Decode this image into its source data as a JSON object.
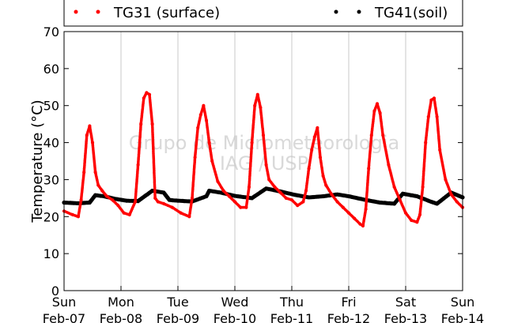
{
  "chart_data": {
    "type": "scatter",
    "title": "",
    "xlabel": "",
    "ylabel": "Temperature (°C)",
    "ylim": [
      0,
      70
    ],
    "y_ticks": [
      0,
      10,
      20,
      30,
      40,
      50,
      60,
      70
    ],
    "x_unit": "days",
    "xlim": [
      0,
      7
    ],
    "x_ticks": [
      {
        "day": "Sun",
        "date": "Feb-07"
      },
      {
        "day": "Mon",
        "date": "Feb-08"
      },
      {
        "day": "Tue",
        "date": "Feb-09"
      },
      {
        "day": "Wed",
        "date": "Feb-10"
      },
      {
        "day": "Thu",
        "date": "Feb-11"
      },
      {
        "day": "Fri",
        "date": "Feb-12"
      },
      {
        "day": "Sat",
        "date": "Feb-13"
      },
      {
        "day": "Sun",
        "date": "Feb-14"
      }
    ],
    "grid": "vertical",
    "legend_position": "top",
    "watermark": [
      "Grupo de Micrometeorologia",
      "IAG / USP"
    ],
    "series": [
      {
        "name": "TG31 (surface)",
        "color": "#ff0000",
        "x": [
          0.0,
          0.15,
          0.25,
          0.3,
          0.35,
          0.4,
          0.45,
          0.5,
          0.55,
          0.6,
          0.67,
          0.75,
          0.85,
          0.95,
          1.05,
          1.15,
          1.25,
          1.3,
          1.35,
          1.4,
          1.45,
          1.5,
          1.55,
          1.6,
          1.65,
          1.75,
          1.9,
          2.05,
          2.2,
          2.25,
          2.3,
          2.35,
          2.4,
          2.45,
          2.5,
          2.55,
          2.6,
          2.7,
          2.8,
          2.9,
          3.0,
          3.1,
          3.2,
          3.25,
          3.3,
          3.35,
          3.4,
          3.45,
          3.5,
          3.55,
          3.6,
          3.7,
          3.8,
          3.9,
          4.0,
          4.1,
          4.2,
          4.25,
          4.3,
          4.35,
          4.4,
          4.45,
          4.5,
          4.55,
          4.6,
          4.7,
          4.8,
          4.9,
          5.0,
          5.1,
          5.2,
          5.25,
          5.3,
          5.35,
          5.4,
          5.45,
          5.5,
          5.55,
          5.6,
          5.7,
          5.8,
          5.9,
          6.0,
          6.1,
          6.2,
          6.25,
          6.3,
          6.35,
          6.4,
          6.45,
          6.5,
          6.55,
          6.6,
          6.7,
          6.8,
          6.9,
          7.0
        ],
        "y": [
          21.5,
          20.5,
          20.0,
          24.5,
          32.0,
          42.0,
          44.5,
          40.0,
          32.0,
          28.5,
          27.0,
          25.5,
          24.5,
          23.0,
          21.0,
          20.5,
          24.0,
          34.0,
          45.0,
          52.0,
          53.5,
          53.0,
          45.0,
          25.0,
          24.0,
          23.5,
          22.5,
          21.0,
          20.0,
          25.0,
          36.0,
          44.0,
          47.5,
          50.0,
          46.0,
          40.0,
          35.0,
          29.5,
          27.0,
          25.5,
          24.0,
          22.5,
          22.5,
          28.0,
          40.0,
          50.0,
          53.0,
          49.5,
          42.0,
          34.0,
          30.0,
          28.0,
          26.5,
          25.0,
          24.5,
          23.0,
          24.0,
          27.0,
          33.0,
          38.0,
          41.5,
          44.0,
          36.0,
          31.0,
          28.5,
          26.0,
          24.0,
          22.5,
          21.0,
          19.5,
          18.0,
          17.5,
          22.0,
          33.0,
          42.0,
          48.5,
          50.5,
          48.0,
          42.0,
          34.0,
          28.0,
          24.5,
          21.0,
          19.0,
          18.5,
          20.5,
          28.0,
          40.0,
          47.0,
          51.5,
          52.0,
          47.0,
          38.0,
          30.0,
          26.0,
          24.0,
          22.5
        ]
      },
      {
        "name": "TG41(soil)",
        "color": "#000000",
        "x": [
          0.0,
          0.25,
          0.45,
          0.55,
          0.7,
          0.9,
          1.1,
          1.3,
          1.55,
          1.75,
          1.85,
          2.0,
          2.25,
          2.5,
          2.55,
          2.75,
          3.0,
          3.3,
          3.55,
          3.8,
          4.05,
          4.3,
          4.55,
          4.8,
          5.0,
          5.3,
          5.55,
          5.8,
          5.95,
          6.2,
          6.45,
          6.55,
          6.8,
          7.0
        ],
        "y": [
          23.8,
          23.6,
          23.8,
          25.8,
          25.5,
          24.8,
          24.3,
          24.2,
          27.0,
          26.5,
          24.5,
          24.3,
          24.1,
          25.5,
          27.0,
          26.5,
          25.6,
          25.0,
          27.6,
          26.8,
          25.9,
          25.2,
          25.5,
          26.0,
          25.5,
          24.5,
          23.8,
          23.5,
          26.2,
          25.5,
          24.0,
          23.5,
          26.5,
          25.2
        ]
      }
    ]
  }
}
